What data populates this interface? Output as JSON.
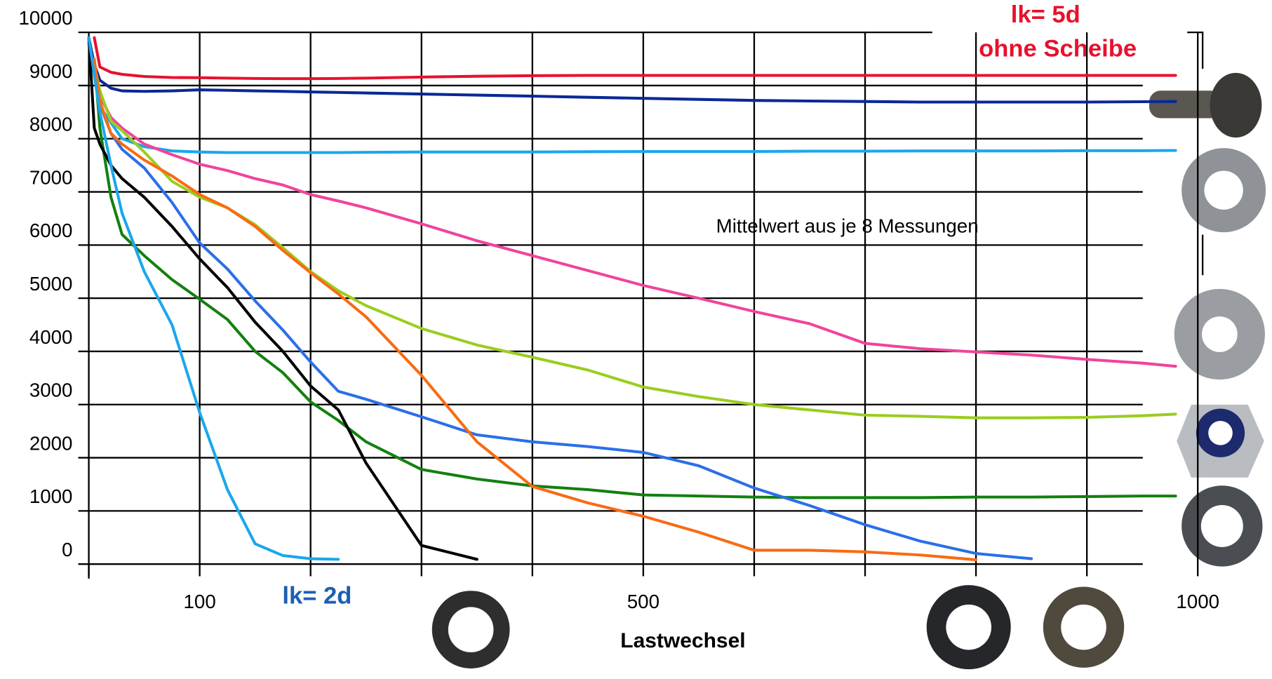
{
  "chart_data": {
    "type": "line",
    "x_label": "Lastwechsel",
    "annotations": [
      "lk= 5d",
      "ohne Scheibe",
      "lk= 2d",
      "Mittelwert aus je 8 Messungen"
    ],
    "x": [
      0,
      5,
      10,
      20,
      30,
      50,
      75,
      100,
      125,
      150,
      175,
      200,
      225,
      250,
      300,
      350,
      400,
      450,
      500,
      550,
      600,
      650,
      700,
      750,
      800,
      850,
      900,
      950,
      980
    ],
    "xlim": [
      0,
      1000
    ],
    "ylim": [
      0,
      10000
    ],
    "xticks": [
      {
        "value": 0,
        "label": null
      },
      100,
      {
        "value": 200,
        "label": null
      },
      {
        "value": 300,
        "label": null
      },
      {
        "value": 400,
        "label": null
      },
      500,
      {
        "value": 600,
        "label": null
      },
      {
        "value": 700,
        "label": null
      },
      {
        "value": 800,
        "label": null
      },
      {
        "value": 900,
        "label": null
      },
      1000
    ],
    "yticks": [
      0,
      1000,
      2000,
      3000,
      4000,
      5000,
      6000,
      7000,
      8000,
      9000,
      10000
    ],
    "grid": true,
    "series": [
      {
        "color": "#e8112d",
        "values": [
          null,
          9900,
          9350,
          9250,
          9210,
          9170,
          9150,
          9148,
          9140,
          9132,
          9130,
          9130,
          9132,
          9140,
          9160,
          9175,
          9185,
          9190,
          9190,
          9190,
          9190,
          9190,
          9190,
          9190,
          9190,
          9190,
          9190,
          9190,
          9190
        ]
      },
      {
        "color": "#0a2896",
        "values": [
          9900,
          9400,
          9100,
          8950,
          8900,
          8890,
          8900,
          8920,
          8910,
          8900,
          8890,
          8880,
          8870,
          8860,
          8840,
          8820,
          8800,
          8780,
          8760,
          8740,
          8720,
          8710,
          8700,
          8690,
          8690,
          8690,
          8690,
          8695,
          8700
        ]
      },
      {
        "color": "#1aa7ec",
        "values": [
          9800,
          9300,
          8600,
          8300,
          8000,
          7850,
          7770,
          7750,
          7740,
          7740,
          7740,
          7740,
          7740,
          7745,
          7750,
          7750,
          7750,
          7755,
          7760,
          7760,
          7760,
          7765,
          7765,
          7770,
          7770,
          7770,
          7775,
          7775,
          7780
        ]
      },
      {
        "color": "#f0449b",
        "values": [
          null,
          null,
          8800,
          8400,
          8200,
          7900,
          7700,
          7520,
          7400,
          7250,
          7130,
          6950,
          6830,
          6700,
          6400,
          6080,
          5800,
          5520,
          5240,
          5000,
          4750,
          4520,
          4150,
          4050,
          3990,
          3930,
          3850,
          3780,
          3720
        ]
      },
      {
        "color": "#9acd1e",
        "values": [
          null,
          9400,
          8900,
          8330,
          8150,
          7750,
          7200,
          6900,
          6700,
          6380,
          5950,
          5500,
          5140,
          4860,
          4430,
          4120,
          3890,
          3650,
          3330,
          3150,
          3000,
          2900,
          2800,
          2780,
          2750,
          2750,
          2760,
          2790,
          2820
        ]
      },
      {
        "color": "#13800f",
        "values": [
          null,
          9500,
          8200,
          6900,
          6200,
          5800,
          5350,
          4980,
          4600,
          4000,
          3600,
          3050,
          2700,
          2300,
          1780,
          1600,
          1470,
          1400,
          1300,
          1280,
          1260,
          1250,
          1250,
          1250,
          1260,
          1260,
          1270,
          1280,
          1280
        ]
      },
      {
        "color": "#000000",
        "values": [
          9900,
          8200,
          7900,
          7500,
          7250,
          6900,
          6350,
          5740,
          5200,
          4550,
          4000,
          3350,
          2900,
          1900,
          350,
          90,
          null,
          null,
          null,
          null,
          null,
          null,
          null,
          null,
          null,
          null,
          null,
          null,
          null
        ]
      },
      {
        "color": "#2b6fe8",
        "values": [
          null,
          9200,
          8650,
          8100,
          7800,
          7450,
          6800,
          6040,
          5550,
          4950,
          4400,
          3800,
          3250,
          3100,
          2770,
          2430,
          2300,
          2210,
          2100,
          1850,
          1430,
          1100,
          740,
          430,
          200,
          100,
          null,
          null,
          null
        ]
      },
      {
        "color": "#f86b14",
        "values": [
          null,
          9500,
          8700,
          8100,
          7900,
          7600,
          7300,
          6950,
          6700,
          6350,
          5900,
          5480,
          5080,
          4650,
          3550,
          2300,
          1460,
          1150,
          900,
          600,
          260,
          260,
          230,
          170,
          80,
          null,
          null,
          null,
          null
        ]
      },
      {
        "color": "#1aa7ec",
        "values": [
          9900,
          9200,
          8500,
          7500,
          6600,
          5500,
          4500,
          2850,
          1400,
          380,
          160,
          100,
          90,
          null,
          null,
          null,
          null,
          null,
          null,
          null,
          null,
          null,
          null,
          null,
          null,
          null,
          null,
          null,
          null
        ]
      }
    ]
  }
}
